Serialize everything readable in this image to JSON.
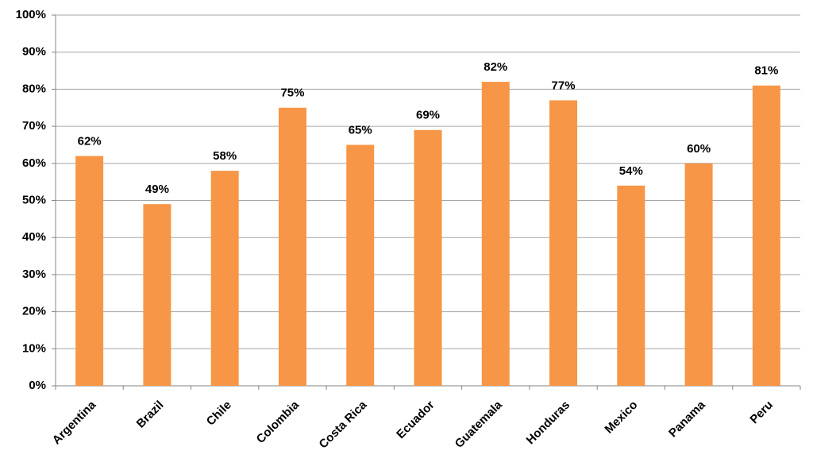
{
  "chart_data": {
    "type": "bar",
    "categories": [
      "Argentina",
      "Brazil",
      "Chile",
      "Colombia",
      "Costa Rica",
      "Ecuador",
      "Guatemala",
      "Honduras",
      "Mexico",
      "Panama",
      "Peru"
    ],
    "values": [
      62,
      49,
      58,
      75,
      65,
      69,
      82,
      77,
      54,
      60,
      81
    ],
    "value_labels": [
      "62%",
      "49%",
      "58%",
      "75%",
      "65%",
      "69%",
      "82%",
      "77%",
      "54%",
      "60%",
      "81%"
    ],
    "color": "#f79646",
    "ylim": [
      0,
      100
    ],
    "yticks": [
      {
        "value": 0,
        "label": "0%"
      },
      {
        "value": 10,
        "label": "10%"
      },
      {
        "value": 20,
        "label": "20%"
      },
      {
        "value": 30,
        "label": "30%"
      },
      {
        "value": 40,
        "label": "40%"
      },
      {
        "value": 50,
        "label": "50%"
      },
      {
        "value": 60,
        "label": "60%"
      },
      {
        "value": 70,
        "label": "70%"
      },
      {
        "value": 80,
        "label": "80%"
      },
      {
        "value": 90,
        "label": "90%"
      },
      {
        "value": 100,
        "label": "100%"
      }
    ],
    "grid": true
  }
}
